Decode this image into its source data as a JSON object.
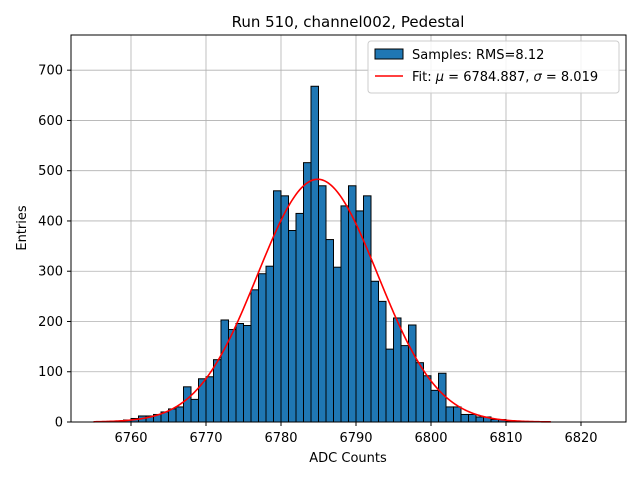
{
  "chart_data": {
    "type": "bar",
    "title": "Run 510, channel002, Pedestal",
    "xlabel": "ADC Counts",
    "ylabel": "Entries",
    "xlim": [
      6752,
      6826
    ],
    "ylim": [
      0,
      770
    ],
    "xticks": [
      6760,
      6770,
      6780,
      6790,
      6800,
      6810,
      6820
    ],
    "yticks": [
      0,
      100,
      200,
      300,
      400,
      500,
      600,
      700
    ],
    "grid": true,
    "legend_position": "top-right",
    "colors": {
      "bars": "#1f77b4",
      "bar_edge": "#000000",
      "fit": "#ff0000",
      "grid": "#b0b0b0"
    },
    "bin_width": 1,
    "histogram": {
      "name": "Samples: RMS=8.12",
      "bin_left_edges": [
        6756,
        6757,
        6758,
        6759,
        6760,
        6761,
        6762,
        6763,
        6764,
        6765,
        6766,
        6767,
        6768,
        6769,
        6770,
        6771,
        6772,
        6773,
        6774,
        6775,
        6776,
        6777,
        6778,
        6779,
        6780,
        6781,
        6782,
        6783,
        6784,
        6785,
        6786,
        6787,
        6788,
        6789,
        6790,
        6791,
        6792,
        6793,
        6794,
        6795,
        6796,
        6797,
        6798,
        6799,
        6800,
        6801,
        6802,
        6803,
        6804,
        6805,
        6806,
        6807,
        6808,
        6809,
        6810,
        6811,
        6812,
        6813,
        6814,
        6815
      ],
      "counts": [
        1,
        1,
        2,
        4,
        7,
        12,
        12,
        15,
        20,
        26,
        30,
        70,
        45,
        86,
        90,
        124,
        203,
        184,
        196,
        192,
        263,
        295,
        310,
        460,
        450,
        381,
        415,
        516,
        668,
        470,
        363,
        308,
        430,
        470,
        420,
        450,
        280,
        240,
        145,
        207,
        152,
        193,
        118,
        92,
        63,
        97,
        30,
        30,
        15,
        15,
        10,
        10,
        5,
        5,
        2,
        2,
        1,
        1,
        0,
        0
      ]
    },
    "fit": {
      "name_prefix": "Fit: ",
      "name_mu_symbol": "μ",
      "name_mu_value": " = 6784.887, ",
      "name_sigma_symbol": "σ",
      "name_sigma_value": " = 8.019",
      "mu": 6784.887,
      "sigma": 8.019,
      "amplitude": 483,
      "x_range": [
        6755,
        6816
      ]
    }
  }
}
